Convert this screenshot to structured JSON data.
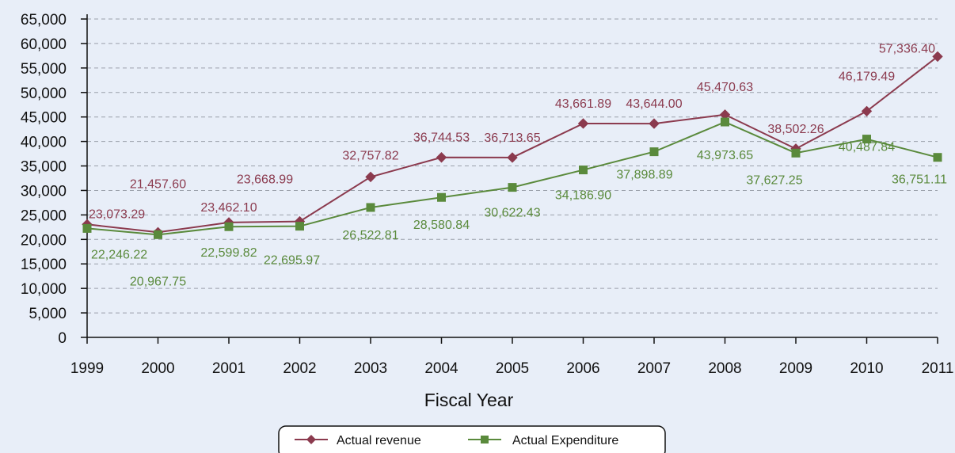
{
  "chart_data": {
    "type": "line",
    "categories": [
      "1999",
      "2000",
      "2001",
      "2002",
      "2003",
      "2004",
      "2005",
      "2006",
      "2007",
      "2008",
      "2009",
      "2010",
      "2011"
    ],
    "series": [
      {
        "name": "Actual revenue",
        "color": "#8b3a4e",
        "marker": "diamond",
        "values": [
          23073.29,
          21457.6,
          23462.1,
          23668.99,
          32757.82,
          36744.53,
          36713.65,
          43661.89,
          43644.0,
          45470.63,
          38502.26,
          46179.49,
          57336.4
        ],
        "labels": [
          "23,073.29",
          "21,457.60",
          "23,462.10",
          "23,668.99",
          "32,757.82",
          "36,744.53",
          "36,713.65",
          "43,661.89",
          "43,644.00",
          "45,470.63",
          "38,502.26",
          "46,179.49",
          "57,336.40"
        ]
      },
      {
        "name": "Actual Expenditure",
        "color": "#5a8a3c",
        "marker": "square",
        "values": [
          22246.22,
          20967.75,
          22599.82,
          22695.97,
          26522.81,
          28580.84,
          30622.43,
          34186.9,
          37898.89,
          43973.65,
          37627.25,
          40487.84,
          36751.11
        ],
        "labels": [
          "22,246.22",
          "20,967.75",
          "22,599.82",
          "22,695.97",
          "26,522.81",
          "28,580.84",
          "30,622.43",
          "34,186.90",
          "37,898.89",
          "43,973.65",
          "37,627.25",
          "40,487.84",
          "36,751.11"
        ]
      }
    ],
    "xlabel": "Fiscal Year",
    "ylim": [
      0,
      65000
    ],
    "yticks": [
      "0",
      "5,000",
      "10,000",
      "15,000",
      "20,000",
      "25,000",
      "30,000",
      "35,000",
      "40,000",
      "45,000",
      "50,000",
      "55,000",
      "60,000",
      "65,000"
    ],
    "grid": "horizontal dashed",
    "legend_position": "bottom-center"
  }
}
